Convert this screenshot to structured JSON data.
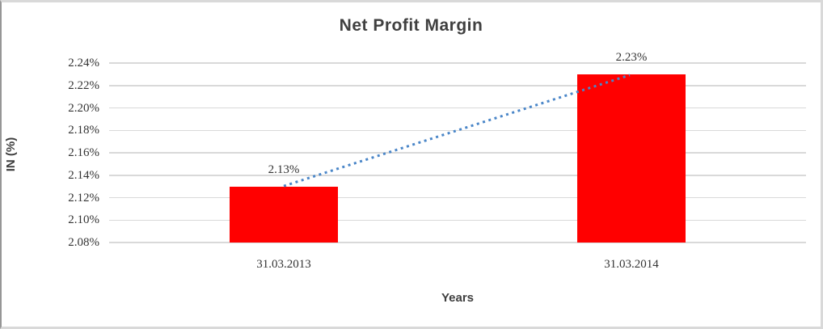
{
  "window": {
    "background": "#ffffff",
    "frame_border_color": "#d9d9d9",
    "frame_left_border_color": "#969696"
  },
  "chart_data": {
    "type": "bar",
    "title": "Net Profit Margin",
    "xlabel": "Years",
    "ylabel": "IN (%)",
    "categories": [
      "31.03.2013",
      "31.03.2014"
    ],
    "series": [
      {
        "name": "Net Profit Margin",
        "values": [
          2.13,
          2.23
        ]
      }
    ],
    "data_labels": [
      "2.13%",
      "2.23%"
    ],
    "ylim": [
      2.08,
      2.24
    ],
    "ytick_step": 0.02,
    "ytick_labels": [
      "2.24%",
      "2.22%",
      "2.20%",
      "2.18%",
      "2.16%",
      "2.14%",
      "2.12%",
      "2.10%",
      "2.08%"
    ],
    "grid": true,
    "legend": "none",
    "bar_color": "#ff0000",
    "gridline_color": "#d9d9d9",
    "title_color": "#404040",
    "axis_title_color": "#3f3f3f",
    "label_color": "#333333",
    "trendline": {
      "type": "linear",
      "style": "dotted",
      "color": "#4a86c8",
      "points": [
        2.13,
        2.23
      ]
    }
  }
}
